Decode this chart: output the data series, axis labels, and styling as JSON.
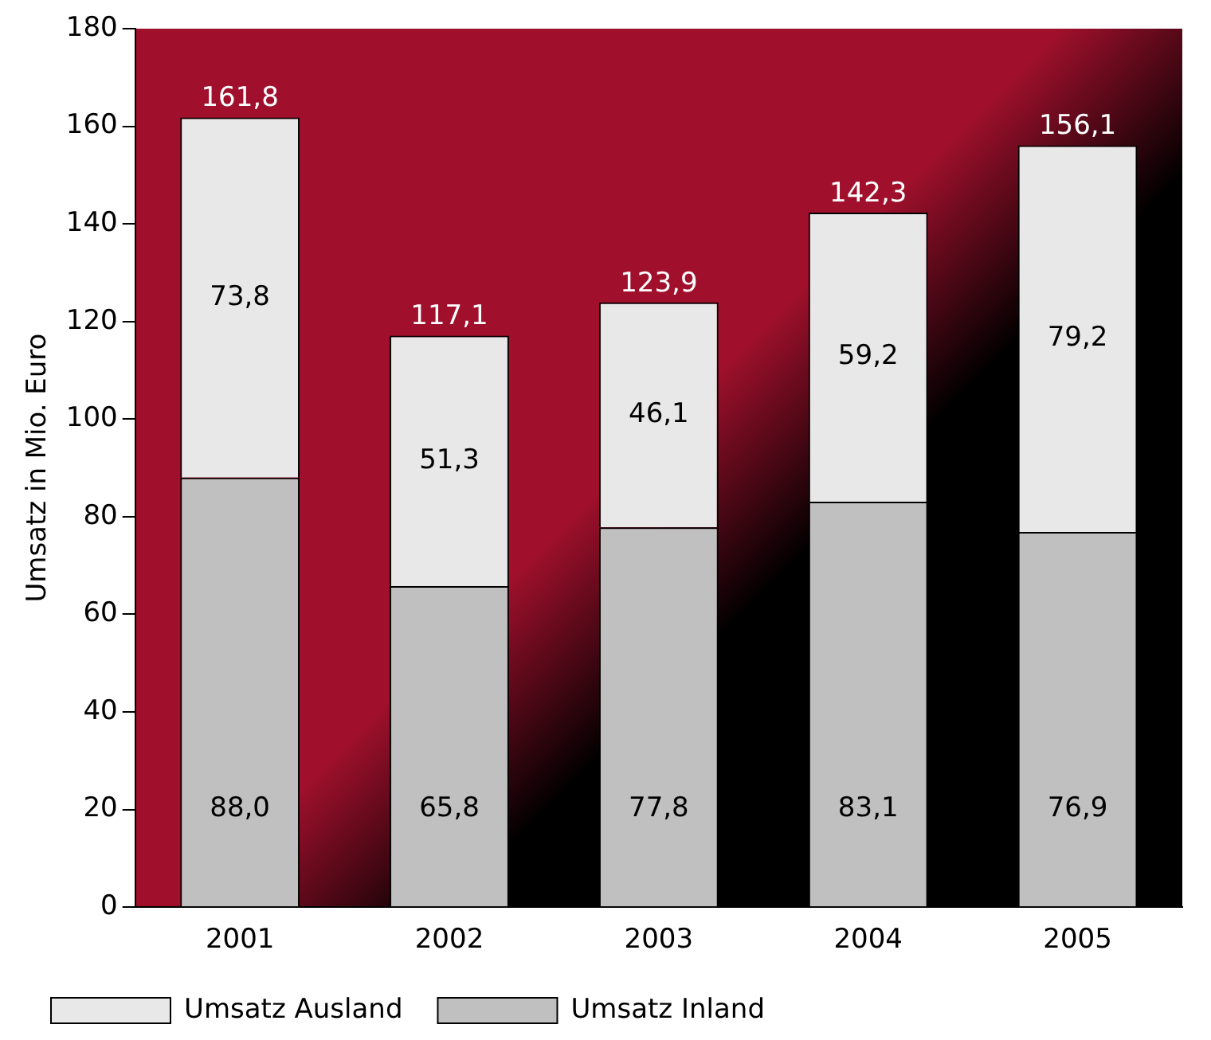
{
  "chart_data": {
    "type": "bar",
    "stacked": true,
    "ylabel": "Umsatz in Mio. Euro",
    "categories": [
      "2001",
      "2002",
      "2003",
      "2004",
      "2005"
    ],
    "series": [
      {
        "name": "Umsatz Inland",
        "color": "#c0c0c0",
        "values": [
          88.0,
          65.8,
          77.8,
          83.1,
          76.9
        ],
        "value_labels": [
          "88,0",
          "65,8",
          "77,8",
          "83,1",
          "76,9"
        ]
      },
      {
        "name": "Umsatz Ausland",
        "color": "#e8e8e8",
        "values": [
          73.8,
          51.3,
          46.1,
          59.2,
          79.2
        ],
        "value_labels": [
          "73,8",
          "51,3",
          "46,1",
          "59,2",
          "79,2"
        ]
      }
    ],
    "totals": [
      "161,8",
      "117,1",
      "123,9",
      "142,3",
      "156,1"
    ],
    "ylim": [
      0,
      180
    ],
    "yticks": [
      0,
      20,
      40,
      60,
      80,
      100,
      120,
      140,
      160,
      180
    ],
    "grid": false,
    "legend": "bottom"
  }
}
